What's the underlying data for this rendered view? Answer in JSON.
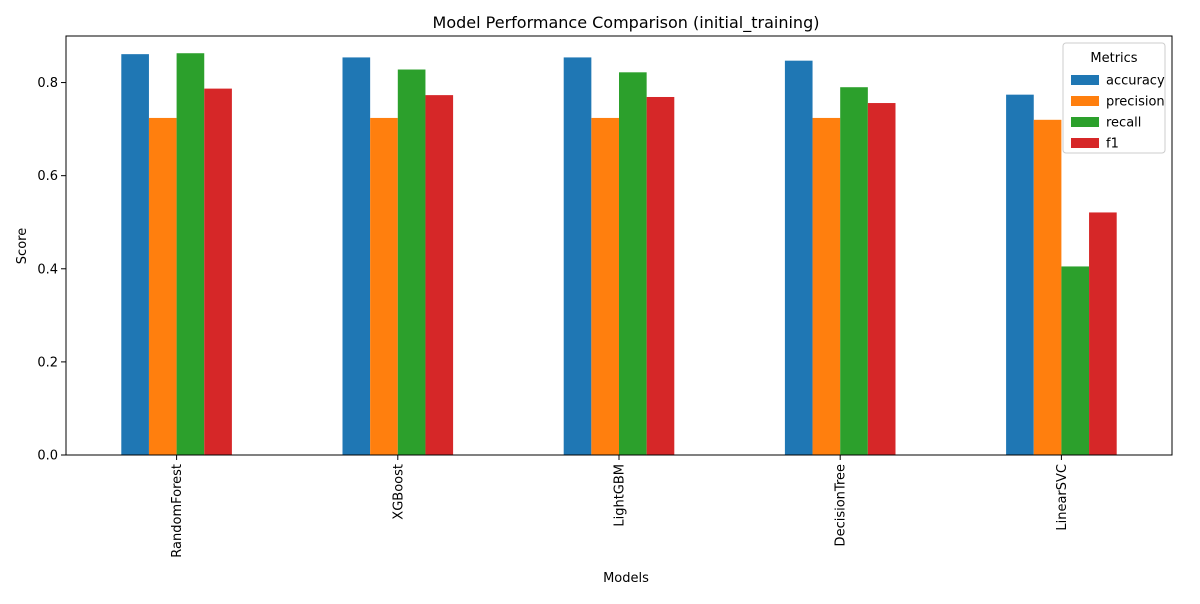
{
  "chart_data": {
    "type": "bar",
    "title": "Model Performance Comparison (initial_training)",
    "xlabel": "Models",
    "ylabel": "Score",
    "ylim": [
      0,
      0.9
    ],
    "yticks": [
      0.0,
      0.2,
      0.4,
      0.6,
      0.8
    ],
    "ytick_labels": [
      "0.0",
      "0.2",
      "0.4",
      "0.6",
      "0.8"
    ],
    "categories": [
      "RandomForest",
      "XGBoost",
      "LightGBM",
      "DecisionTree",
      "LinearSVC"
    ],
    "legend_title": "Metrics",
    "legend_position": "top-right",
    "grid": false,
    "series": [
      {
        "name": "accuracy",
        "color": "#1f77b4",
        "values": [
          0.861,
          0.854,
          0.854,
          0.847,
          0.774
        ]
      },
      {
        "name": "precision",
        "color": "#ff7f0e",
        "values": [
          0.724,
          0.724,
          0.724,
          0.724,
          0.72
        ]
      },
      {
        "name": "recall",
        "color": "#2ca02c",
        "values": [
          0.863,
          0.828,
          0.822,
          0.79,
          0.405
        ]
      },
      {
        "name": "f1",
        "color": "#d62728",
        "values": [
          0.787,
          0.773,
          0.769,
          0.756,
          0.521
        ]
      }
    ]
  }
}
